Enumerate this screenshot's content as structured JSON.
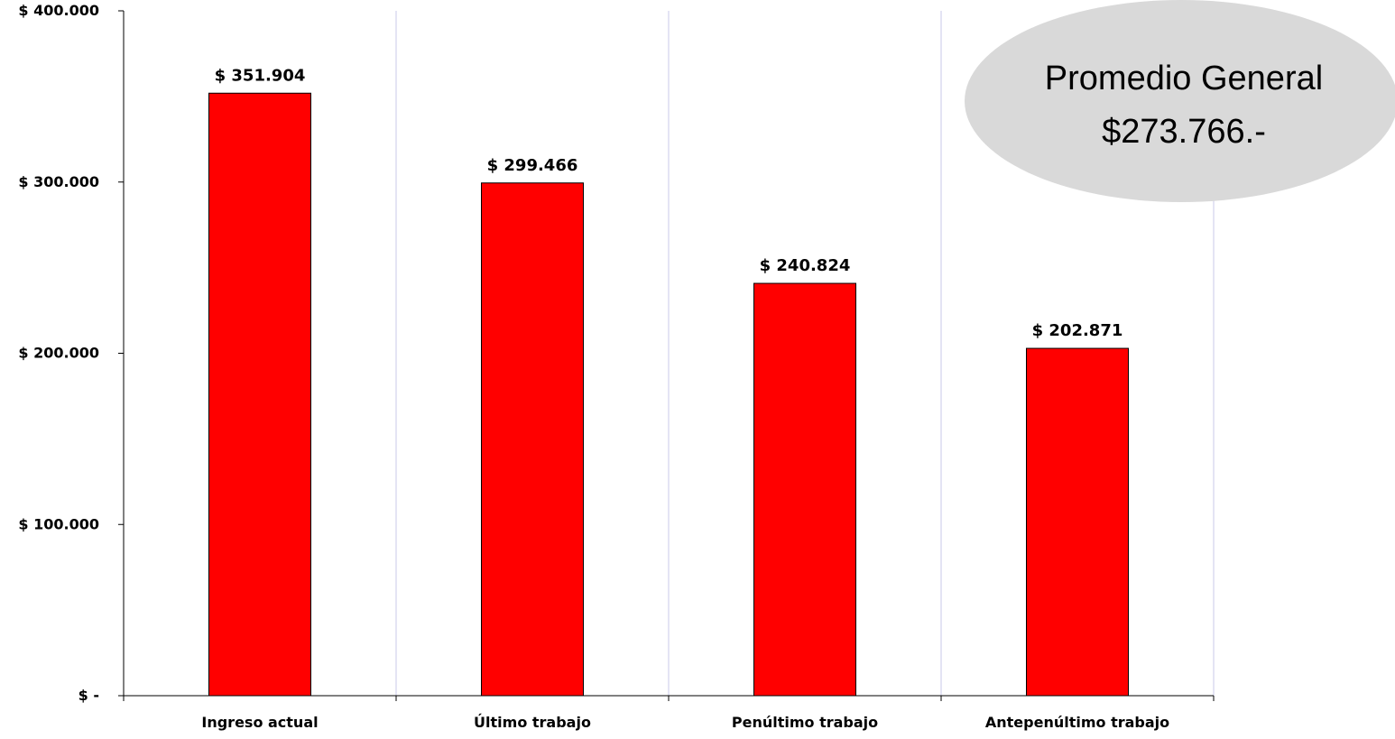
{
  "chart_data": {
    "type": "bar",
    "categories": [
      "Ingreso actual",
      "Último trabajo",
      "Penúltimo trabajo",
      "Antepenúltimo trabajo"
    ],
    "values": [
      351904,
      299466,
      240824,
      202871
    ],
    "data_labels": [
      "$ 351.904",
      "$ 299.466",
      "$ 240.824",
      "$ 202.871"
    ],
    "title": "",
    "xlabel": "",
    "ylabel": "",
    "ylim": [
      0,
      400000
    ],
    "y_ticks": [
      0,
      100000,
      200000,
      300000,
      400000
    ],
    "y_tick_labels": [
      "$ -",
      "$ 100.000",
      "$ 200.000",
      "$ 300.000",
      "$ 400.000"
    ],
    "bar_color": "#ff0000",
    "grid": "vertical",
    "grid_color": "#c8c8e8",
    "annotation": {
      "line1": "Promedio General",
      "line2": "$273.766.-",
      "fill": "#d9d9d9"
    }
  }
}
